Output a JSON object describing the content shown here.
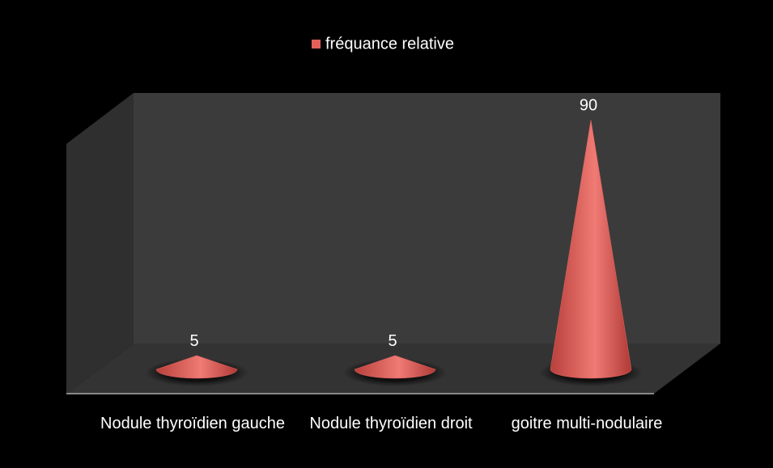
{
  "chart_data": {
    "type": "cone",
    "categories": [
      "Nodule thyroïdien gauche",
      "Nodule thyroïdien droit",
      "goitre multi-nodulaire"
    ],
    "series": [
      {
        "name": "fréquance relative",
        "color": "#e0615c",
        "values": [
          5,
          5,
          90
        ]
      }
    ],
    "ylim": [
      0,
      100
    ],
    "legend": "top"
  }
}
